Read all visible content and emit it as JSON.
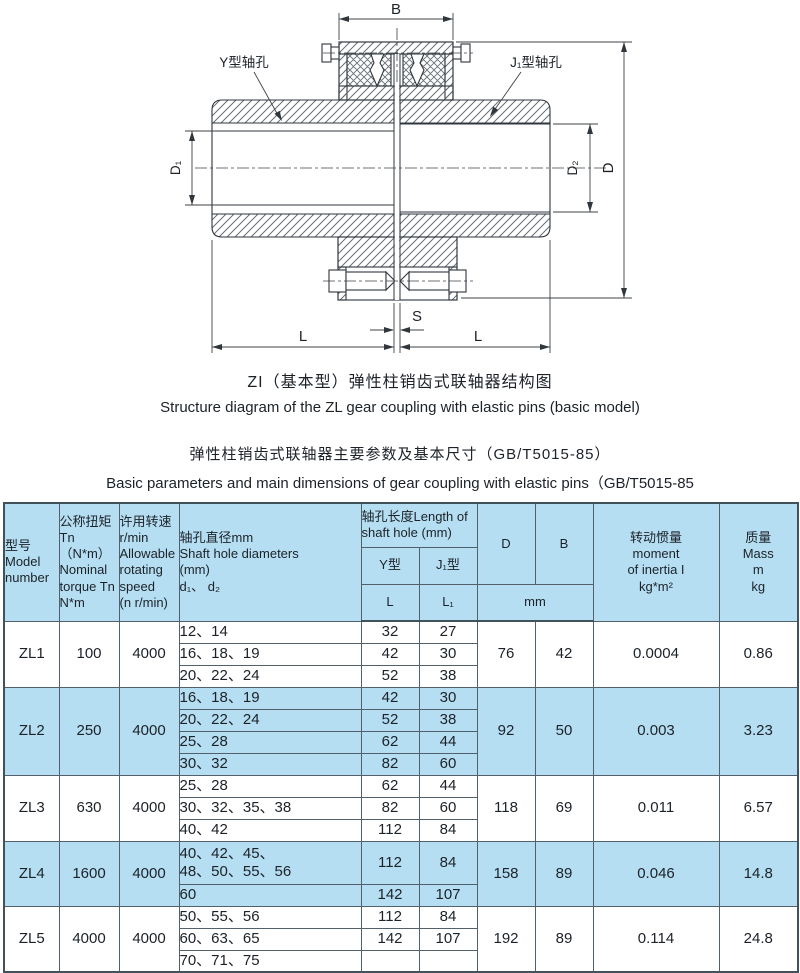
{
  "drawing": {
    "labels": {
      "b": "B",
      "d": "D",
      "d1": "D₁",
      "d2": "D₂",
      "l_left": "L",
      "l_right": "L",
      "s": "S",
      "y_hole": "Y型轴孔",
      "j_hole": "J₁型轴孔"
    },
    "caption_cn": "ZI（基本型）弹性柱销齿式联轴器结构图",
    "caption_en": "Structure diagram of the ZL gear coupling with elastic pins (basic model)"
  },
  "table": {
    "title_cn": "弹性柱销齿式联轴器主要参数及基本尺寸（GB/T5015-85）",
    "title_en": "Basic parameters and main dimensions of gear coupling with elastic pins（GB/T5015-85",
    "header": {
      "model": "型号\nModel\nnumber",
      "torque": "公称扭矩\nTn（N*m）\nNominal\ntorque Tn\nN*m",
      "speed": "许用转速\nr/min\nAllowable\nrotating\nspeed\n(n r/min)",
      "diameters": "轴孔直径mm\nShaft hole diameters\n(mm)\nd₁、 d₂",
      "length_group": "轴孔长度Length of\nshaft hole (mm)",
      "y_type": "Y型",
      "j_type": "J₁型",
      "l": "L",
      "l1": "L₁",
      "d": "D",
      "b": "B",
      "mm": "mm",
      "inertia": "转动惯量\nmoment\nof inertia I\nkg*m²",
      "mass": "质量\nMass\nm\nkg"
    },
    "groups": [
      {
        "model": "ZL1",
        "torque": "100",
        "speed": "4000",
        "d": "76",
        "b": "42",
        "inertia": "0.0004",
        "mass": "0.86",
        "shade": false,
        "rows": [
          {
            "dia": "12、14",
            "l": "32",
            "l1": "27"
          },
          {
            "dia": "16、18、19",
            "l": "42",
            "l1": "30"
          },
          {
            "dia": "20、22、24",
            "l": "52",
            "l1": "38"
          }
        ]
      },
      {
        "model": "ZL2",
        "torque": "250",
        "speed": "4000",
        "d": "92",
        "b": "50",
        "inertia": "0.003",
        "mass": "3.23",
        "shade": true,
        "rows": [
          {
            "dia": "16、18、19",
            "l": "42",
            "l1": "30"
          },
          {
            "dia": "20、22、24",
            "l": "52",
            "l1": "38"
          },
          {
            "dia": "25、28",
            "l": "62",
            "l1": "44"
          },
          {
            "dia": "30、32",
            "l": "82",
            "l1": "60"
          }
        ]
      },
      {
        "model": "ZL3",
        "torque": "630",
        "speed": "4000",
        "d": "118",
        "b": "69",
        "inertia": "0.011",
        "mass": "6.57",
        "shade": false,
        "rows": [
          {
            "dia": "25、28",
            "l": "62",
            "l1": "44"
          },
          {
            "dia": "30、32、35、38",
            "l": "82",
            "l1": "60"
          },
          {
            "dia": "40、42",
            "l": "112",
            "l1": "84"
          }
        ]
      },
      {
        "model": "ZL4",
        "torque": "1600",
        "speed": "4000",
        "d": "158",
        "b": "89",
        "inertia": "0.046",
        "mass": "14.8",
        "shade": true,
        "rows": [
          {
            "dia": "40、42、45、\n48、50、55、56",
            "l": "112",
            "l1": "84"
          },
          {
            "dia": "60",
            "l": "142",
            "l1": "107"
          }
        ]
      },
      {
        "model": "ZL5",
        "torque": "4000",
        "speed": "4000",
        "d": "192",
        "b": "89",
        "inertia": "0.114",
        "mass": "24.8",
        "shade": false,
        "rows": [
          {
            "dia": "50、55、56",
            "l": "112",
            "l1": "84"
          },
          {
            "dia": "60、63、65",
            "l": "142",
            "l1": "107"
          },
          {
            "dia": "70、71、75",
            "l": "",
            "l1": "",
            "merge_up": true
          }
        ]
      }
    ]
  }
}
